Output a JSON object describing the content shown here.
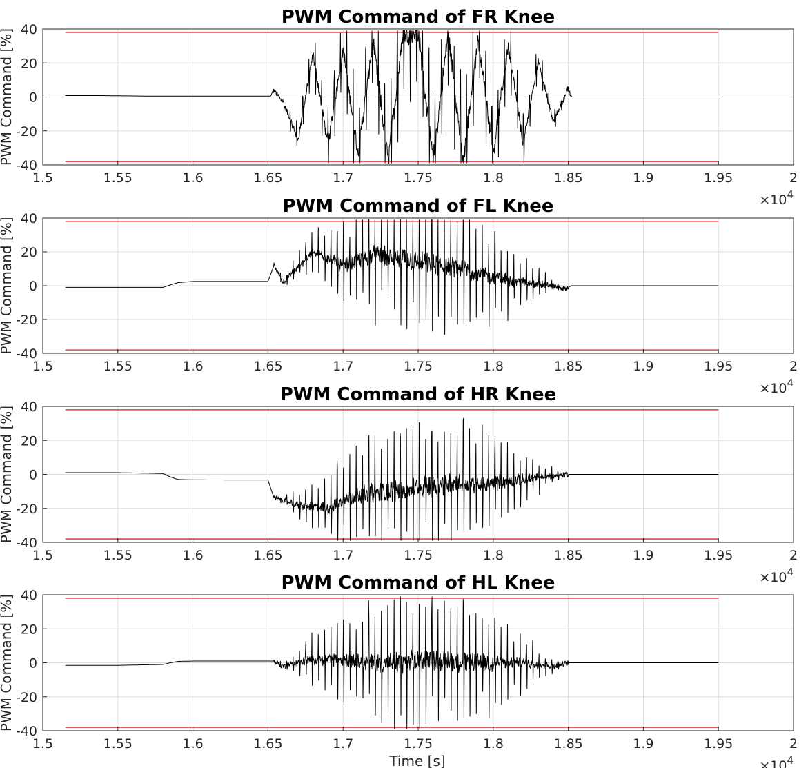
{
  "figure": {
    "xlabel": "Time [s]",
    "x_exponent_base": "×10",
    "x_exponent_power": "4"
  },
  "chart_data": [
    {
      "type": "line",
      "title": "PWM Command of FR Knee",
      "ylabel": "PWM Command [%]",
      "xlabel": "",
      "xlim": [
        15000,
        20000
      ],
      "ylim": [
        -40,
        40
      ],
      "x_ticks": [
        "1.5",
        "1.55",
        "1.6",
        "1.65",
        "1.7",
        "1.75",
        "1.8",
        "1.85",
        "1.9",
        "1.95",
        "2"
      ],
      "x_tick_values": [
        15000,
        15500,
        16000,
        16500,
        17000,
        17500,
        18000,
        18500,
        19000,
        19500,
        20000
      ],
      "y_ticks": [
        "40",
        "20",
        "0",
        "-20",
        "-40"
      ],
      "y_tick_values": [
        40,
        20,
        0,
        -20,
        -40
      ],
      "grid": true,
      "limit_lines": [
        38,
        -38
      ],
      "limit_color": "#d62728",
      "series_color": "#000000",
      "series": [
        {
          "x": [
            15150,
            15400,
            15700,
            16000,
            16300,
            16520,
            16540,
            16600,
            16700,
            16800,
            16900,
            17000,
            17100,
            17200,
            17300,
            17400,
            17500,
            17600,
            17700,
            17800,
            17900,
            18000,
            18100,
            18200,
            18300,
            18400,
            18500,
            18520,
            18800,
            19000,
            19300,
            19500
          ],
          "y": [
            0.8,
            0.8,
            0.5,
            0.5,
            0.5,
            0.5,
            4,
            -3,
            -25,
            25,
            -28,
            28,
            -33,
            33,
            -38,
            38,
            38,
            -38,
            38,
            -38,
            35,
            -33,
            30,
            -28,
            22,
            -15,
            5,
            0,
            0,
            0,
            0,
            0
          ]
        }
      ],
      "burst": {
        "start": 16520,
        "end": 18520,
        "peak": 38,
        "trend": [
          [
            17100,
            0
          ],
          [
            18000,
            0
          ],
          [
            18230,
            -22
          ],
          [
            18260,
            0
          ]
        ]
      }
    },
    {
      "type": "line",
      "title": "PWM Command of FL Knee",
      "ylabel": "PWM Command [%]",
      "xlabel": "",
      "xlim": [
        15000,
        20000
      ],
      "ylim": [
        -40,
        40
      ],
      "x_ticks": [
        "1.5",
        "1.55",
        "1.6",
        "1.65",
        "1.7",
        "1.75",
        "1.8",
        "1.85",
        "1.9",
        "1.95",
        "2"
      ],
      "x_tick_values": [
        15000,
        15500,
        16000,
        16500,
        17000,
        17500,
        18000,
        18500,
        19000,
        19500,
        20000
      ],
      "y_ticks": [
        "40",
        "20",
        "0",
        "-20",
        "-40"
      ],
      "y_tick_values": [
        40,
        20,
        0,
        -20,
        -40
      ],
      "grid": true,
      "limit_lines": [
        38,
        -38
      ],
      "limit_color": "#d62728",
      "series_color": "#000000",
      "series": [
        {
          "x": [
            15150,
            15500,
            15800,
            15850,
            15900,
            16000,
            16200,
            16500,
            16540,
            16600,
            16800,
            17000,
            17200,
            17400,
            17600,
            17800,
            18000,
            18200,
            18400,
            18480,
            18520,
            18800,
            19500
          ],
          "y": [
            -1,
            -1,
            -1,
            0.5,
            1.8,
            2.5,
            2.5,
            2.5,
            12,
            2,
            20,
            12,
            18,
            16,
            12,
            10,
            5,
            2,
            0,
            -2,
            0,
            0,
            0
          ]
        }
      ],
      "burst": {
        "start": 16540,
        "end": 18500,
        "peak": 38
      }
    },
    {
      "type": "line",
      "title": "PWM Command of HR Knee",
      "ylabel": "PWM Command [%]",
      "xlabel": "",
      "xlim": [
        15000,
        20000
      ],
      "ylim": [
        -40,
        40
      ],
      "x_ticks": [
        "1.5",
        "1.55",
        "1.6",
        "1.65",
        "1.7",
        "1.75",
        "1.8",
        "1.85",
        "1.9",
        "1.95",
        "2"
      ],
      "x_tick_values": [
        15000,
        15500,
        16000,
        16500,
        17000,
        17500,
        18000,
        18500,
        19000,
        19500,
        20000
      ],
      "y_ticks": [
        "40",
        "20",
        "0",
        "-20",
        "-40"
      ],
      "y_tick_values": [
        40,
        20,
        0,
        -20,
        -40
      ],
      "grid": true,
      "limit_lines": [
        38,
        -38
      ],
      "limit_color": "#d62728",
      "series_color": "#000000",
      "series": [
        {
          "x": [
            15150,
            15500,
            15800,
            15850,
            15900,
            16000,
            16300,
            16500,
            16540,
            16600,
            16700,
            16900,
            17100,
            17300,
            17500,
            17700,
            17900,
            18100,
            18300,
            18500,
            18800,
            19500
          ],
          "y": [
            1,
            1,
            0.5,
            -1.5,
            -3,
            -3.2,
            -3.3,
            -3.3,
            -14,
            -15,
            -18,
            -20,
            -12,
            -10,
            -8,
            -5,
            -6,
            -4,
            -2,
            0,
            0,
            0
          ]
        }
      ],
      "burst": {
        "start": 16540,
        "end": 18500,
        "peak": 38
      }
    },
    {
      "type": "line",
      "title": "PWM Command of HL Knee",
      "ylabel": "PWM Command [%]",
      "xlabel": "Time [s]",
      "xlim": [
        15000,
        20000
      ],
      "ylim": [
        -40,
        40
      ],
      "x_ticks": [
        "1.5",
        "1.55",
        "1.6",
        "1.65",
        "1.7",
        "1.75",
        "1.8",
        "1.85",
        "1.9",
        "1.95",
        "2"
      ],
      "x_tick_values": [
        15000,
        15500,
        16000,
        16500,
        17000,
        17500,
        18000,
        18500,
        19000,
        19500,
        20000
      ],
      "y_ticks": [
        "40",
        "20",
        "0",
        "-20",
        "-40"
      ],
      "y_tick_values": [
        40,
        20,
        0,
        -20,
        -40
      ],
      "grid": true,
      "limit_lines": [
        38,
        -38
      ],
      "limit_color": "#d62728",
      "series_color": "#000000",
      "series": [
        {
          "x": [
            15150,
            15500,
            15800,
            15850,
            15900,
            16000,
            16300,
            16540,
            16600,
            16800,
            17000,
            17200,
            17400,
            17600,
            17800,
            18000,
            18200,
            18400,
            18500,
            18800,
            19500
          ],
          "y": [
            -1.5,
            -1.5,
            -1,
            0,
            0.8,
            1,
            1,
            1,
            -2,
            2,
            2,
            0,
            0,
            2,
            0,
            0,
            0,
            -2,
            0,
            0,
            0
          ]
        }
      ],
      "burst": {
        "start": 16540,
        "end": 18500,
        "peak": 38
      }
    }
  ]
}
